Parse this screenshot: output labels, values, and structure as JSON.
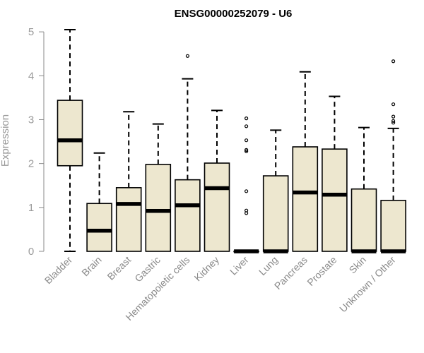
{
  "chart_data": {
    "type": "box",
    "title": "ENSG00000252079 - U6",
    "xlabel": "",
    "ylabel": "Expression",
    "ylim": [
      0,
      5.15
    ],
    "yticks": [
      "0",
      "1",
      "2",
      "3",
      "4",
      "5"
    ],
    "ytick_values": [
      0,
      1,
      2,
      3,
      4,
      5
    ],
    "box_fill": "#ede7cf",
    "categories": [
      "Bladder",
      "Brain",
      "Breast",
      "Gastric",
      "Hematopoietic cells",
      "Kidney",
      "Liver",
      "Lung",
      "Pancreas",
      "Prostate",
      "Skin",
      "Unknown / Other"
    ],
    "boxes": [
      {
        "whisker_low": 0.0,
        "q1": 1.95,
        "median": 2.53,
        "q3": 3.44,
        "whisker_high": 5.05,
        "outliers": []
      },
      {
        "whisker_low": 0.0,
        "q1": 0.0,
        "median": 0.47,
        "q3": 1.09,
        "whisker_high": 2.24,
        "outliers": []
      },
      {
        "whisker_low": 0.0,
        "q1": 0.0,
        "median": 1.08,
        "q3": 1.45,
        "whisker_high": 3.18,
        "outliers": []
      },
      {
        "whisker_low": 0.0,
        "q1": 0.0,
        "median": 0.92,
        "q3": 1.98,
        "whisker_high": 2.9,
        "outliers": []
      },
      {
        "whisker_low": 0.0,
        "q1": 0.0,
        "median": 1.05,
        "q3": 1.63,
        "whisker_high": 3.93,
        "outliers": [
          4.45
        ]
      },
      {
        "whisker_low": 0.0,
        "q1": 0.0,
        "median": 1.44,
        "q3": 2.01,
        "whisker_high": 3.21,
        "outliers": []
      },
      {
        "whisker_low": 0.0,
        "q1": 0.0,
        "median": 0.0,
        "q3": 0.0,
        "whisker_high": 0.0,
        "outliers": [
          0.87,
          0.93,
          1.37,
          2.28,
          2.31,
          2.53,
          2.85,
          3.03
        ]
      },
      {
        "whisker_low": 0.0,
        "q1": 0.0,
        "median": 0.0,
        "q3": 1.72,
        "whisker_high": 2.76,
        "outliers": []
      },
      {
        "whisker_low": 0.0,
        "q1": 0.0,
        "median": 1.34,
        "q3": 2.38,
        "whisker_high": 4.09,
        "outliers": []
      },
      {
        "whisker_low": 0.0,
        "q1": 0.0,
        "median": 1.29,
        "q3": 2.33,
        "whisker_high": 3.53,
        "outliers": []
      },
      {
        "whisker_low": 0.0,
        "q1": 0.0,
        "median": 0.0,
        "q3": 1.42,
        "whisker_high": 2.82,
        "outliers": []
      },
      {
        "whisker_low": 0.0,
        "q1": 0.0,
        "median": 0.0,
        "q3": 1.16,
        "whisker_high": 2.8,
        "outliers": [
          2.93,
          2.97,
          3.07,
          3.35,
          4.33
        ]
      }
    ]
  }
}
